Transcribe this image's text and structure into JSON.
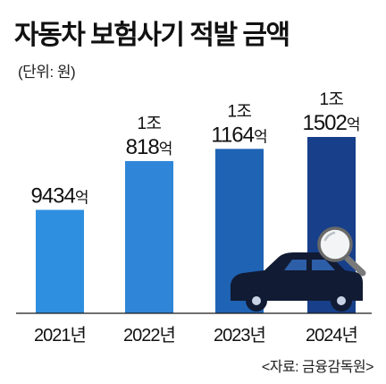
{
  "title": "자동차 보험사기 적발 금액",
  "unit": "(단위: 원)",
  "source": "<자료: 금융감독원>",
  "colors": {
    "bars": [
      "#2e8fe0",
      "#2f86d8",
      "#1f63b4",
      "#173f8a"
    ],
    "car": "#111b33",
    "magnifier": "#555555"
  },
  "chart_data": {
    "type": "bar",
    "categories": [
      "2021년",
      "2022년",
      "2023년",
      "2024년"
    ],
    "values": [
      9434,
      10818,
      11164,
      11502
    ],
    "value_unit": "억 원",
    "data_labels": [
      {
        "line1": "",
        "number": "9434",
        "suffix": "억"
      },
      {
        "line1": "1조",
        "number": "818",
        "suffix": "억"
      },
      {
        "line1": "1조",
        "number": "1164",
        "suffix": "억"
      },
      {
        "line1": "1조",
        "number": "1502",
        "suffix": "억"
      }
    ],
    "title": "자동차 보험사기 적발 금액",
    "xlabel": "",
    "ylabel": "",
    "grid": false,
    "legend": "none"
  },
  "decorations": {
    "car_icon": "car-icon",
    "magnifier_icon": "magnifying-glass-icon"
  }
}
